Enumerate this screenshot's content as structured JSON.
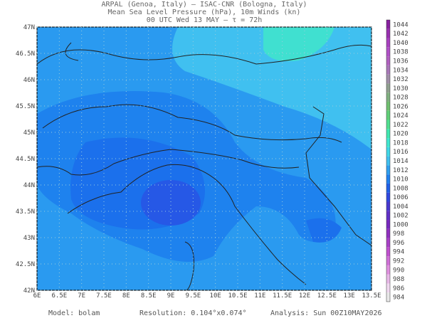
{
  "header": {
    "lines": [
      "ARPAL (Genoa, Italy)  –  ISAC-CNR (Bologna, Italy)",
      "Mean Sea Level Pressure (hPa), 10m Winds (kn)",
      "00 UTC Wed 13 MAY  –  τ = 72h"
    ]
  },
  "map": {
    "lon_labels": [
      "6E",
      "6.5E",
      "7E",
      "7.5E",
      "8E",
      "8.5E",
      "9E",
      "9.5E",
      "10E",
      "10.5E",
      "11E",
      "11.5E",
      "12E",
      "12.5E",
      "13E",
      "13.5E"
    ],
    "lat_labels": [
      "47N",
      "46.5N",
      "46N",
      "45.5N",
      "45N",
      "44.5N",
      "44N",
      "43.5N",
      "43N",
      "42.5N",
      "42N"
    ]
  },
  "colorbar": {
    "levels": [
      984,
      986,
      988,
      990,
      992,
      994,
      996,
      998,
      1000,
      1002,
      1004,
      1006,
      1008,
      1010,
      1012,
      1014,
      1016,
      1018,
      1020,
      1022,
      1024,
      1026,
      1028,
      1030,
      1032,
      1034,
      1036,
      1038,
      1040,
      1042,
      1044
    ],
    "colors": [
      "#e8e8e8",
      "#f0d8f0",
      "#e8b8e8",
      "#e090e0",
      "#d070d8",
      "#c050d0",
      "#a840c8",
      "#9030c0",
      "#7828c0",
      "#6030c8",
      "#4838d0",
      "#3048e0",
      "#2060e8",
      "#2080f0",
      "#30a0f0",
      "#40c0f0",
      "#40d8e8",
      "#40e8d0",
      "#40e8b0",
      "#50e090",
      "#60d078",
      "#70c070",
      "#80b080",
      "#90a090",
      "#a090a8",
      "#a878b8",
      "#b060c0",
      "#b050c8",
      "#a840c0",
      "#9830b0",
      "#8820a0"
    ]
  },
  "footer": {
    "model": "Model: bolam",
    "resolution": "Resolution: 0.104°x0.074°",
    "analysis": "Analysis: Sun 00Z10MAY2026"
  }
}
